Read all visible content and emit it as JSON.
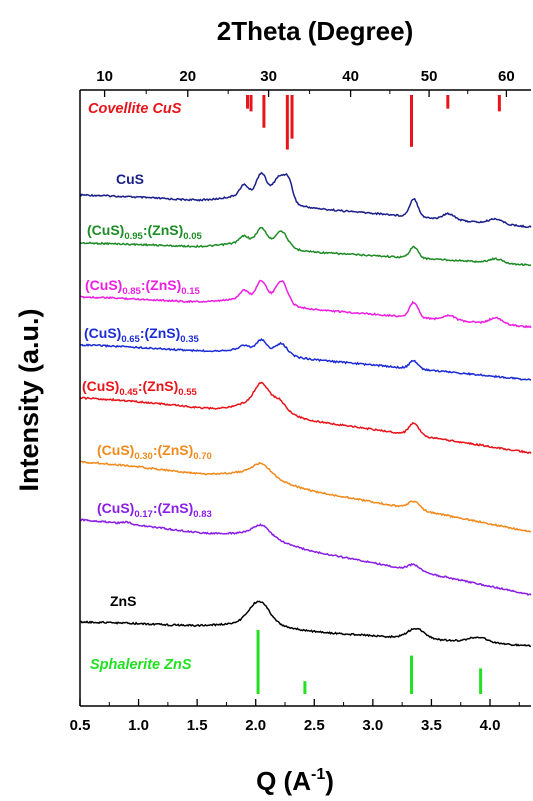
{
  "chart_data": {
    "type": "line",
    "xlabel": "Q (A⁻¹)",
    "xlabel_parts": {
      "main": "Q (A",
      "sup": "-1",
      "close": ")"
    },
    "ylabel": "Intensity (a.u.)",
    "top_axis_label": "2Theta (Degree)",
    "xlim": [
      0.5,
      4.35
    ],
    "x_ticks": [
      0.5,
      1.0,
      1.5,
      2.0,
      2.5,
      3.0,
      3.5,
      4.0
    ],
    "x_tick_labels": [
      "0.5",
      "1.0",
      "1.5",
      "2.0",
      "2.5",
      "3.0",
      "3.5",
      "4.0"
    ],
    "top_ticks": [
      10,
      20,
      30,
      40,
      50,
      60
    ],
    "top_tick_labels": [
      "10",
      "20",
      "30",
      "40",
      "50",
      "60"
    ],
    "top_tick_positions_q": [
      0.71,
      1.42,
      2.11,
      2.81,
      3.48,
      4.14
    ],
    "y_ticks_shown": false,
    "grid": false,
    "references": [
      {
        "name": "Covellite CuS",
        "color": "#e8141a",
        "peaks": [
          {
            "q": 1.93,
            "rel": 0.25
          },
          {
            "q": 1.96,
            "rel": 0.3
          },
          {
            "q": 2.07,
            "rel": 0.6
          },
          {
            "q": 2.27,
            "rel": 1.0
          },
          {
            "q": 2.31,
            "rel": 0.8
          },
          {
            "q": 3.33,
            "rel": 0.95
          },
          {
            "q": 3.64,
            "rel": 0.25
          },
          {
            "q": 4.08,
            "rel": 0.3
          }
        ]
      },
      {
        "name": "Sphalerite ZnS",
        "color": "#22e022",
        "peaks": [
          {
            "q": 2.02,
            "rel": 1.0
          },
          {
            "q": 2.42,
            "rel": 0.2
          },
          {
            "q": 3.33,
            "rel": 0.6
          },
          {
            "q": 3.92,
            "rel": 0.4
          }
        ]
      }
    ],
    "series": [
      {
        "name": "CuS",
        "label_parts": [
          {
            "t": "CuS"
          }
        ],
        "color": "#1a1f8a",
        "peaks": [
          [
            1.9,
            10,
            0.05
          ],
          [
            2.05,
            22,
            0.06
          ],
          [
            2.2,
            22,
            0.07
          ],
          [
            2.28,
            20,
            0.05
          ],
          [
            3.35,
            18,
            0.05
          ],
          [
            3.65,
            6,
            0.07
          ],
          [
            4.05,
            5,
            0.08
          ]
        ],
        "broad": [
          [
            2.0,
            10,
            0.3
          ]
        ]
      },
      {
        "name": "(CuS)0.95:(ZnS)0.05",
        "label_parts": [
          {
            "t": "(CuS)"
          },
          {
            "t": "0.95",
            "sub": true
          },
          {
            "t": ":(ZnS)"
          },
          {
            "t": "0.05",
            "sub": true
          }
        ],
        "color": "#1e8c26",
        "peaks": [
          [
            1.9,
            6,
            0.05
          ],
          [
            2.05,
            14,
            0.06
          ],
          [
            2.22,
            15,
            0.07
          ],
          [
            3.35,
            11,
            0.05
          ],
          [
            4.05,
            4,
            0.08
          ]
        ],
        "broad": [
          [
            2.0,
            8,
            0.3
          ]
        ]
      },
      {
        "name": "(CuS)0.85:(ZnS)0.15",
        "label_parts": [
          {
            "t": "(CuS)"
          },
          {
            "t": "0.85",
            "sub": true
          },
          {
            "t": ":(ZnS)"
          },
          {
            "t": "0.15",
            "sub": true
          }
        ],
        "color": "#ee1ee3",
        "peaks": [
          [
            1.9,
            8,
            0.05
          ],
          [
            2.05,
            18,
            0.06
          ],
          [
            2.22,
            22,
            0.07
          ],
          [
            3.35,
            15,
            0.05
          ],
          [
            3.65,
            5,
            0.07
          ],
          [
            4.05,
            6,
            0.08
          ]
        ],
        "broad": [
          [
            2.0,
            8,
            0.3
          ]
        ]
      },
      {
        "name": "(CuS)0.65:(ZnS)0.35",
        "label_parts": [
          {
            "t": "(CuS)"
          },
          {
            "t": "0.65",
            "sub": true
          },
          {
            "t": ":(ZnS)"
          },
          {
            "t": "0.35",
            "sub": true
          }
        ],
        "color": "#1b2cd6",
        "peaks": [
          [
            1.9,
            4,
            0.05
          ],
          [
            2.05,
            10,
            0.06
          ],
          [
            2.22,
            10,
            0.07
          ],
          [
            3.35,
            8,
            0.05
          ]
        ],
        "broad": [
          [
            2.0,
            6,
            0.3
          ]
        ]
      },
      {
        "name": "(CuS)0.45:(ZnS)0.55",
        "label_parts": [
          {
            "t": "(CuS)"
          },
          {
            "t": "0.45",
            "sub": true
          },
          {
            "t": ":(ZnS)"
          },
          {
            "t": "0.55",
            "sub": true
          }
        ],
        "color": "#e8141a",
        "peaks": [
          [
            2.05,
            18,
            0.08
          ],
          [
            2.2,
            8,
            0.07
          ],
          [
            3.35,
            12,
            0.06
          ]
        ],
        "broad": [
          [
            2.05,
            14,
            0.25
          ]
        ]
      },
      {
        "name": "(CuS)0.30:(ZnS)0.70",
        "label_parts": [
          {
            "t": "(CuS)"
          },
          {
            "t": "0.30",
            "sub": true
          },
          {
            "t": ":(ZnS)"
          },
          {
            "t": "0.70",
            "sub": true
          }
        ],
        "color": "#f08a1c",
        "peaks": [
          [
            2.05,
            10,
            0.1
          ],
          [
            3.35,
            8,
            0.07
          ]
        ],
        "broad": [
          [
            2.0,
            10,
            0.3
          ]
        ]
      },
      {
        "name": "(CuS)0.17:(ZnS)0.83",
        "label_parts": [
          {
            "t": "(CuS)"
          },
          {
            "t": "0.17",
            "sub": true
          },
          {
            "t": ":(ZnS)"
          },
          {
            "t": "0.83",
            "sub": true
          }
        ],
        "color": "#8a1ee6",
        "peaks": [
          [
            2.05,
            10,
            0.1
          ],
          [
            3.35,
            6,
            0.07
          ],
          [
            0.9,
            2,
            0.05
          ]
        ],
        "broad": [
          [
            2.0,
            8,
            0.3
          ]
        ]
      },
      {
        "name": "ZnS",
        "label_parts": [
          {
            "t": "ZnS"
          }
        ],
        "color": "#000000",
        "peaks": [
          [
            2.03,
            22,
            0.12
          ],
          [
            3.37,
            10,
            0.1
          ],
          [
            3.9,
            5,
            0.12
          ]
        ],
        "broad": [
          [
            2.0,
            6,
            0.35
          ]
        ]
      }
    ]
  }
}
